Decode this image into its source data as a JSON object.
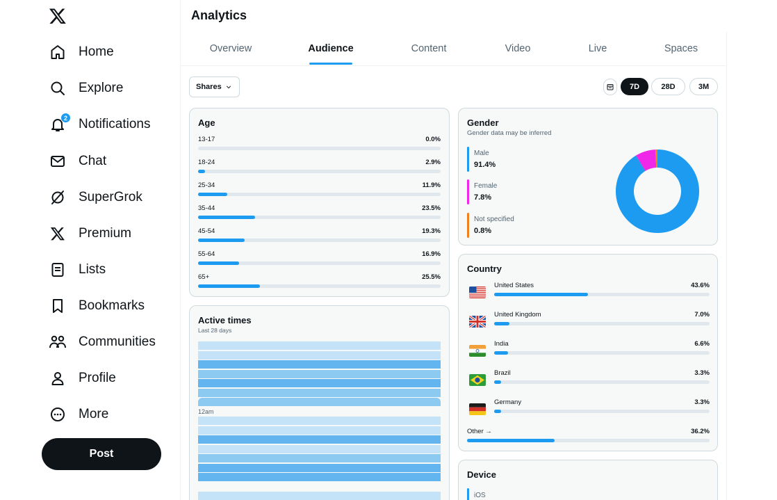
{
  "sidebar": {
    "items": [
      {
        "label": "Home",
        "icon": "home-icon"
      },
      {
        "label": "Explore",
        "icon": "search-icon"
      },
      {
        "label": "Notifications",
        "icon": "bell-icon",
        "badge": "2"
      },
      {
        "label": "Chat",
        "icon": "envelope-icon"
      },
      {
        "label": "SuperGrok",
        "icon": "grok-icon"
      },
      {
        "label": "Premium",
        "icon": "x-logo-icon"
      },
      {
        "label": "Lists",
        "icon": "list-icon"
      },
      {
        "label": "Bookmarks",
        "icon": "bookmark-icon"
      },
      {
        "label": "Communities",
        "icon": "communities-icon"
      },
      {
        "label": "Profile",
        "icon": "person-icon"
      },
      {
        "label": "More",
        "icon": "more-circle-icon"
      }
    ],
    "post_label": "Post"
  },
  "header": {
    "title": "Analytics",
    "tabs": [
      "Overview",
      "Audience",
      "Content",
      "Video",
      "Live",
      "Spaces"
    ],
    "active_tab": "Audience"
  },
  "toolbar": {
    "metric": "Shares",
    "ranges": [
      "7D",
      "28D",
      "3M"
    ],
    "active_range": "7D"
  },
  "age": {
    "title": "Age",
    "rows": [
      {
        "label": "13-17",
        "value": "0.0%",
        "pct": 0.0
      },
      {
        "label": "18-24",
        "value": "2.9%",
        "pct": 2.9
      },
      {
        "label": "25-34",
        "value": "11.9%",
        "pct": 11.9
      },
      {
        "label": "35-44",
        "value": "23.5%",
        "pct": 23.5
      },
      {
        "label": "45-54",
        "value": "19.3%",
        "pct": 19.3
      },
      {
        "label": "55-64",
        "value": "16.9%",
        "pct": 16.9
      },
      {
        "label": "65+",
        "value": "25.5%",
        "pct": 25.5
      }
    ]
  },
  "gender": {
    "title": "Gender",
    "subtitle": "Gender data may be inferred",
    "items": [
      {
        "label": "Male",
        "value": "91.4%",
        "pct": 91.4,
        "color": "#1d9bf0"
      },
      {
        "label": "Female",
        "value": "7.8%",
        "pct": 7.8,
        "color": "#f026e8"
      },
      {
        "label": "Not specified",
        "value": "0.8%",
        "pct": 0.8,
        "color": "#f07f1d"
      }
    ]
  },
  "country": {
    "title": "Country",
    "rows": [
      {
        "label": "United States",
        "value": "43.6%",
        "pct": 43.6,
        "flag": "us-flag-icon"
      },
      {
        "label": "United Kingdom",
        "value": "7.0%",
        "pct": 7.0,
        "flag": "uk-flag-icon"
      },
      {
        "label": "India",
        "value": "6.6%",
        "pct": 6.6,
        "flag": "india-flag-icon"
      },
      {
        "label": "Brazil",
        "value": "3.3%",
        "pct": 3.3,
        "flag": "brazil-flag-icon"
      },
      {
        "label": "Germany",
        "value": "3.3%",
        "pct": 3.3,
        "flag": "germany-flag-icon"
      }
    ],
    "other": {
      "label": "Other →",
      "value": "36.2%",
      "pct": 36.2
    }
  },
  "active_times": {
    "title": "Active times",
    "subtitle": "Last 28 days",
    "time_label": "12am"
  },
  "device": {
    "title": "Device",
    "first_item": "iOS"
  },
  "colors": {
    "accent": "#1d9bf0",
    "heat_light": "#c5e3f8",
    "heat_mid": "#8ccaf2",
    "heat_dark": "#62b5ee"
  }
}
